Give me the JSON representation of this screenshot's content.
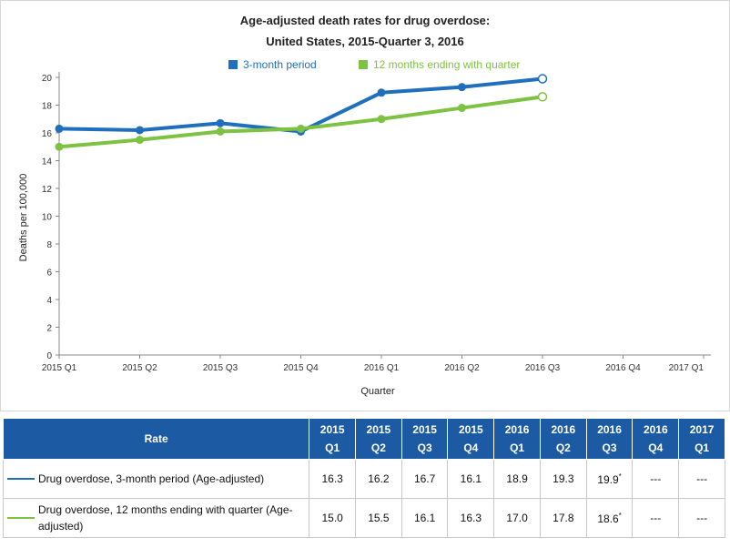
{
  "chart_data": {
    "type": "line",
    "title": [
      "Age-adjusted death rates for drug overdose:",
      "United States, 2015-Quarter 3, 2016"
    ],
    "xlabel": "Quarter",
    "ylabel": "Deaths per 100,000",
    "categories": [
      "2015 Q1",
      "2015 Q2",
      "2015 Q3",
      "2015 Q4",
      "2016 Q1",
      "2016 Q2",
      "2016 Q3",
      "2016 Q4",
      "2017 Q1"
    ],
    "ylim": [
      0,
      20
    ],
    "yticks": [
      0,
      2,
      4,
      6,
      8,
      10,
      12,
      14,
      16,
      18,
      20
    ],
    "grid": false,
    "legend": "top-center",
    "series": [
      {
        "name": "3-month period",
        "color": "#1f6fbd",
        "values": [
          16.3,
          16.2,
          16.7,
          16.1,
          18.9,
          19.3,
          19.9,
          null,
          null
        ],
        "open_last": true
      },
      {
        "name": "12 months ending with quarter",
        "color": "#7dc242",
        "values": [
          15.0,
          15.5,
          16.1,
          16.3,
          17.0,
          17.8,
          18.6,
          null,
          null
        ],
        "open_last": true
      }
    ]
  },
  "table": {
    "header_label": "Rate",
    "columns": [
      [
        "2015",
        "Q1"
      ],
      [
        "2015",
        "Q2"
      ],
      [
        "2015",
        "Q3"
      ],
      [
        "2015",
        "Q4"
      ],
      [
        "2016",
        "Q1"
      ],
      [
        "2016",
        "Q2"
      ],
      [
        "2016",
        "Q3"
      ],
      [
        "2016",
        "Q4"
      ],
      [
        "2017",
        "Q1"
      ]
    ],
    "rows": [
      {
        "label": "Drug overdose, 3-month period (Age-adjusted)",
        "color": "#1f6fbd",
        "values": [
          "16.3",
          "16.2",
          "16.7",
          "16.1",
          "18.9",
          "19.3",
          "19.9",
          "---",
          "---"
        ],
        "flag_index": 6,
        "flag": "*"
      },
      {
        "label": "Drug overdose, 12 months ending with quarter (Age-adjusted)",
        "color": "#7dc242",
        "values": [
          "15.0",
          "15.5",
          "16.1",
          "16.3",
          "17.0",
          "17.8",
          "18.6",
          "---",
          "---"
        ],
        "flag_index": 6,
        "flag": "*"
      }
    ]
  }
}
